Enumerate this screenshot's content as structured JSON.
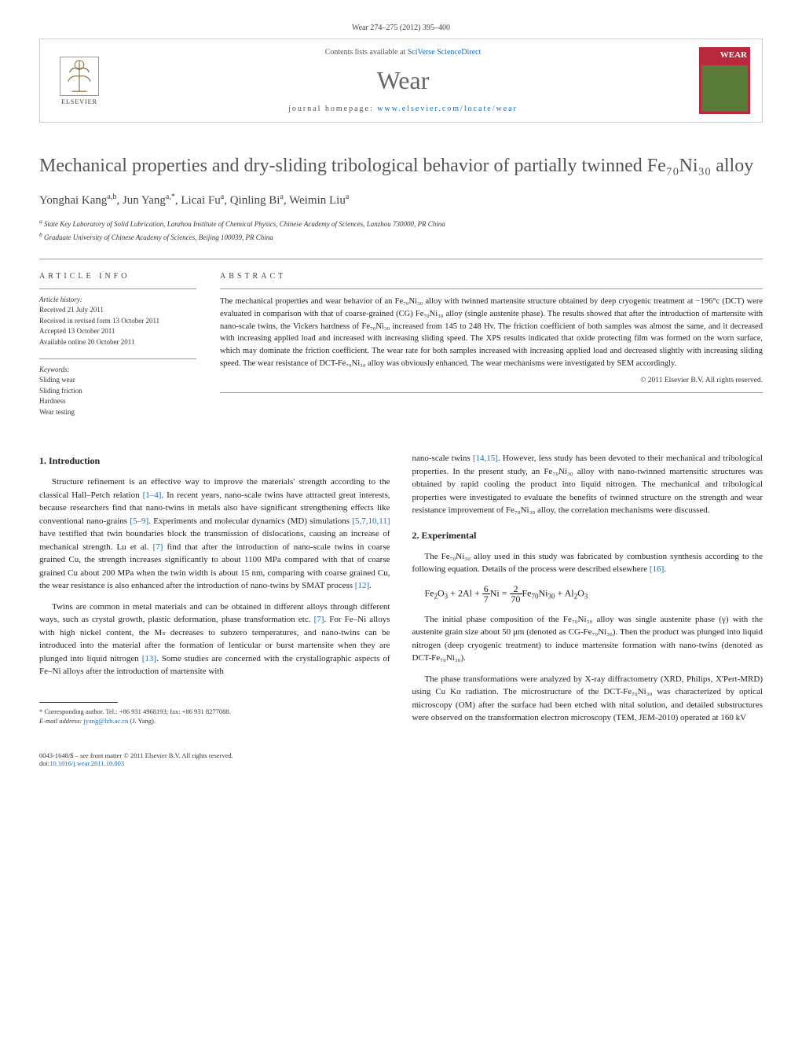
{
  "journal_citation": "Wear 274–275 (2012) 395–400",
  "header": {
    "contents_text": "Contents lists available at ",
    "contents_link": "SciVerse ScienceDirect",
    "journal_name": "Wear",
    "homepage_label": "journal homepage: ",
    "homepage_url": "www.elsevier.com/locate/wear",
    "publisher": "ELSEVIER",
    "cover_title": "WEAR"
  },
  "title": "Mechanical properties and dry-sliding tribological behavior of partially twinned Fe₇₀Ni₃₀ alloy",
  "authors_html": "Yonghai Kang<sup>a,b</sup>, Jun Yang<sup>a,*</sup>, Licai Fu<sup>a</sup>, Qinling Bi<sup>a</sup>, Weimin Liu<sup>a</sup>",
  "affiliations": {
    "a": "State Key Laboratory of Solid Lubrication, Lanzhou Institute of Chemical Physics, Chinese Academy of Sciences, Lanzhou 730000, PR China",
    "b": "Graduate University of Chinese Academy of Sciences, Beijing 100039, PR China"
  },
  "article_info": {
    "header": "ARTICLE INFO",
    "history_label": "Article history:",
    "history": [
      "Received 21 July 2011",
      "Received in revised form 13 October 2011",
      "Accepted 13 October 2011",
      "Available online 20 October 2011"
    ],
    "keywords_label": "Keywords:",
    "keywords": [
      "Sliding wear",
      "Sliding friction",
      "Hardness",
      "Wear testing"
    ]
  },
  "abstract": {
    "header": "ABSTRACT",
    "text": "The mechanical properties and wear behavior of an Fe₇₀Ni₃₀ alloy with twinned martensite structure obtained by deep cryogenic treatment at −196°c (DCT) were evaluated in comparison with that of coarse-grained (CG) Fe₇₀Ni₃₀ alloy (single austenite phase). The results showed that after the introduction of martensite with nano-scale twins, the Vickers hardness of Fe₇₀Ni₃₀ increased from 145 to 248 Hv. The friction coefficient of both samples was almost the same, and it decreased with increasing applied load and increased with increasing sliding speed. The XPS results indicated that oxide protecting film was formed on the worn surface, which may dominate the friction coefficient. The wear rate for both samples increased with increasing applied load and decreased slightly with increasing sliding speed. The wear resistance of DCT-Fe₇₀Ni₃₀ alloy was obviously enhanced. The wear mechanisms were investigated by SEM accordingly.",
    "copyright": "© 2011 Elsevier B.V. All rights reserved."
  },
  "body": {
    "sec1_heading": "1. Introduction",
    "sec1_p1": "Structure refinement is an effective way to improve the materials' strength according to the classical Hall–Petch relation [1–4]. In recent years, nano-scale twins have attracted great interests, because researchers find that nano-twins in metals also have significant strengthening effects like conventional nano-grains [5–9]. Experiments and molecular dynamics (MD) simulations [5,7,10,11] have testified that twin boundaries block the transmission of dislocations, causing an increase of mechanical strength. Lu et al. [7] find that after the introduction of nano-scale twins in coarse grained Cu, the strength increases significantly to about 1100 MPa compared with that of coarse grained Cu about 200 MPa when the twin width is about 15 nm, comparing with coarse grained Cu, the wear resistance is also enhanced after the introduction of nano-twins by SMAT process [12].",
    "sec1_p2": "Twins are common in metal materials and can be obtained in different alloys through different ways, such as crystal growth, plastic deformation, phase transformation etc. [7]. For Fe–Ni alloys with high nickel content, the Mₛ decreases to subzero temperatures, and nano-twins can be introduced into the material after the formation of lenticular or burst martensite when they are plunged into liquid nitrogen [13]. Some studies are concerned with the crystallographic aspects of Fe–Ni alloys after the introduction of martensite with",
    "sec1_p2_cont": "nano-scale twins [14,15]. However, less study has been devoted to their mechanical and tribological properties. In the present study, an Fe₇₀Ni₃₀ alloy with nano-twinned martensitic structures was obtained by rapid cooling the product into liquid nitrogen. The mechanical and tribological properties were investigated to evaluate the benefits of twinned structure on the strength and wear resistance improvement of Fe₇₀Ni₃₀ alloy, the correlation mechanisms were discussed.",
    "sec2_heading": "2. Experimental",
    "sec2_p1": "The Fe₇₀Ni₃₀ alloy used in this study was fabricated by combustion synthesis according to the following equation. Details of the process were described elsewhere [16].",
    "equation": "Fe₂O₃ + 2Al + (6/7)Ni = (2/70)Fe₇₀Ni₃₀ + Al₂O₃",
    "sec2_p2": "The initial phase composition of the Fe₇₀Ni₃₀ alloy was single austenite phase (γ) with the austenite grain size about 50 μm (denoted as CG-Fe₇₀Ni₃₀). Then the product was plunged into liquid nitrogen (deep cryogenic treatment) to induce martensite formation with nano-twins (denoted as DCT-Fe₇₀Ni₃₀).",
    "sec2_p3": "The phase transformations were analyzed by X-ray diffractometry (XRD, Philips, X'Pert-MRD) using Cu Kα radiation. The microstructure of the DCT-Fe₇₀Ni₃₀ was characterized by optical microscopy (OM) after the surface had been etched with nital solution, and detailed substructures were observed on the transformation electron microscopy (TEM, JEM-2010) operated at 160 kV"
  },
  "footnote": {
    "corresponding": "* Corresponding author. Tel.: +86 931 4968193; fax: +86 931 8277088.",
    "email_label": "E-mail address: ",
    "email": "jyang@lzb.ac.cn",
    "email_note": " (J. Yang)."
  },
  "bottom": {
    "issn_line": "0043-1648/$ – see front matter © 2011 Elsevier B.V. All rights reserved.",
    "doi_label": "doi:",
    "doi": "10.1016/j.wear.2011.10.003"
  },
  "colors": {
    "link": "#1a6bb3",
    "title_gray": "#555555",
    "journal_gray": "#666666",
    "cover_red": "#b8293e",
    "cover_green": "#5a7a3a",
    "border": "#cccccc",
    "rule": "#999999"
  },
  "typography": {
    "title_pt": 24,
    "journal_name_pt": 32,
    "body_pt": 11,
    "abstract_pt": 10.5,
    "info_pt": 9,
    "footnote_pt": 8.5
  }
}
